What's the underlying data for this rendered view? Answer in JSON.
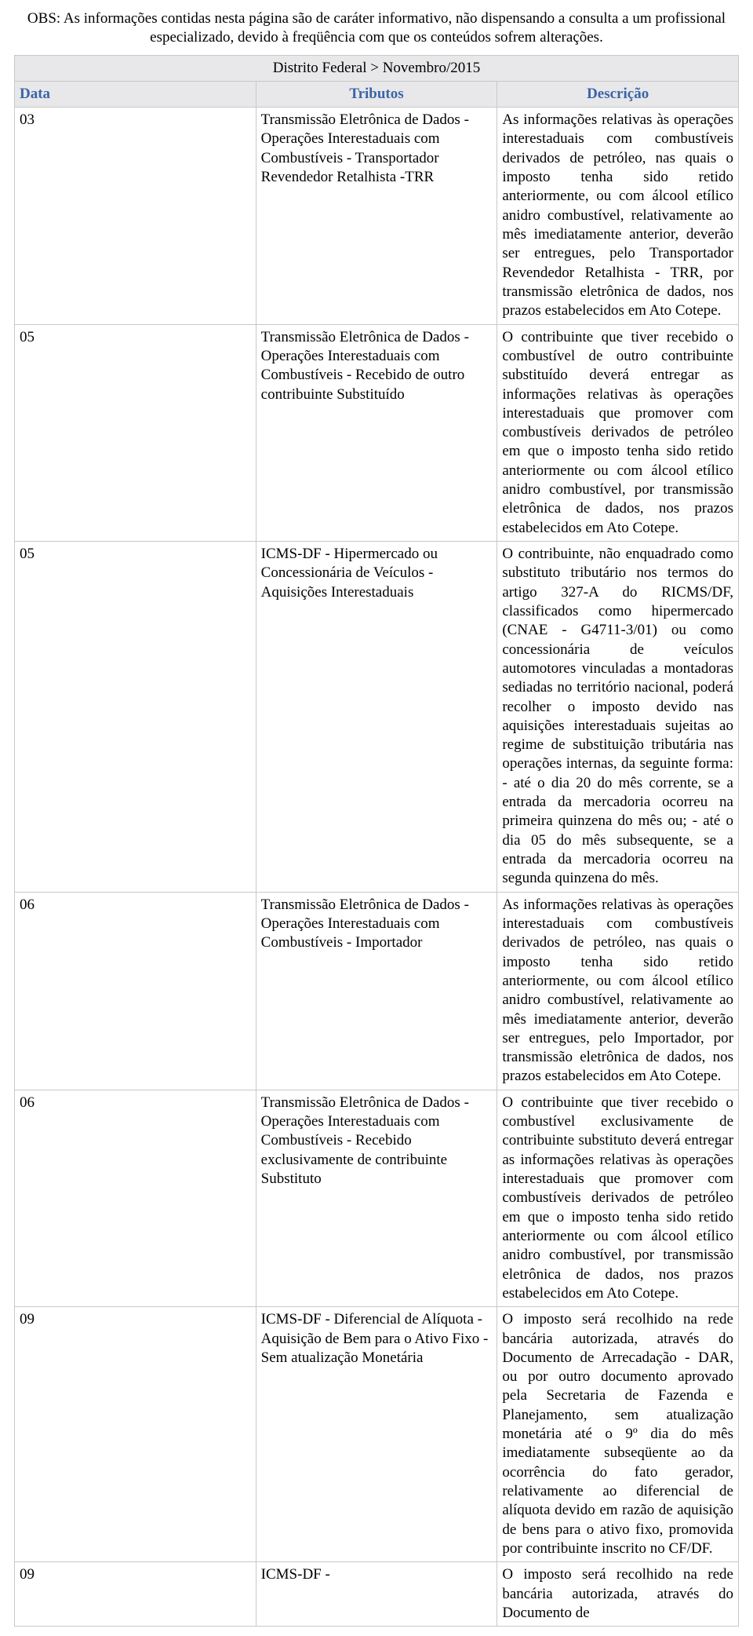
{
  "obs": "OBS: As informações contidas nesta página são de caráter informativo, não dispensando a consulta a um profissional especializado, devido à freqüência com que os conteúdos sofrem alterações.",
  "region": "Distrito Federal > Novembro/2015",
  "headers": {
    "data": "Data",
    "tributos": "Tributos",
    "descricao": "Descrição"
  },
  "rows": [
    {
      "data": "03",
      "tributo": "Transmissão Eletrônica de Dados - Operações Interestaduais com Combustíveis - Transportador Revendedor Retalhista -TRR",
      "descricao": "As informações relativas às operações interestaduais com combustíveis derivados de petróleo, nas quais o imposto tenha sido retido anteriormente, ou com álcool etílico anidro combustível, relativamente ao mês imediatamente anterior, deverão ser entregues, pelo Transportador Revendedor Retalhista - TRR, por transmissão eletrônica de dados, nos prazos estabelecidos em Ato Cotepe."
    },
    {
      "data": "05",
      "tributo": "Transmissão Eletrônica de Dados - Operações Interestaduais com Combustíveis - Recebido de outro contribuinte Substituído",
      "descricao": "O contribuinte que tiver recebido o combustível de outro contribuinte substituído deverá entregar as informações relativas às operações interestaduais que promover com combustíveis derivados de petróleo em que o imposto tenha sido retido anteriormente ou com álcool etílico anidro combustível, por transmissão eletrônica de dados, nos prazos estabelecidos em Ato Cotepe."
    },
    {
      "data": "05",
      "tributo": "ICMS-DF - Hipermercado ou Concessionária de Veículos - Aquisições Interestaduais",
      "descricao": "O contribuinte, não enquadrado como substituto tributário nos termos do artigo 327-A do RICMS/DF, classificados como hipermercado (CNAE - G4711-3/01) ou como concessionária de veículos automotores vinculadas a montadoras sediadas no território nacional, poderá recolher o imposto devido nas aquisições interestaduais sujeitas ao regime de substituição tributária nas operações internas, da seguinte forma: - até o dia 20 do mês corrente, se a entrada da mercadoria ocorreu na primeira quinzena do mês ou; - até o dia 05 do mês subsequente, se a entrada da mercadoria ocorreu na segunda quinzena do mês."
    },
    {
      "data": "06",
      "tributo": "Transmissão Eletrônica de Dados - Operações Interestaduais com Combustíveis - Importador",
      "descricao": "As informações relativas às operações interestaduais com combustíveis derivados de petróleo, nas quais o imposto tenha sido retido anteriormente, ou com álcool etílico anidro combustível, relativamente ao mês imediatamente anterior, deverão ser entregues, pelo Importador, por transmissão eletrônica de dados, nos prazos estabelecidos em Ato Cotepe."
    },
    {
      "data": "06",
      "tributo": "Transmissão Eletrônica de Dados - Operações Interestaduais com Combustíveis - Recebido exclusivamente de contribuinte Substituto",
      "descricao": "O contribuinte que tiver recebido o combustível exclusivamente de contribuinte substituto deverá entregar as informações relativas às operações interestaduais que promover com combustíveis derivados de petróleo em que o imposto tenha sido retido anteriormente ou com álcool etílico anidro combustível, por transmissão eletrônica de dados, nos prazos estabelecidos em Ato Cotepe."
    },
    {
      "data": "09",
      "tributo": "ICMS-DF - Diferencial de Alíquota - Aquisição de Bem para o Ativo Fixo - Sem atualização Monetária",
      "descricao": "O imposto será recolhido na rede bancária autorizada, através do Documento de Arrecadação - DAR, ou por outro documento aprovado pela Secretaria de Fazenda e Planejamento, sem atualização monetária até o 9º dia do mês imediatamente subseqüente ao da ocorrência do fato gerador, relativamente ao diferencial de alíquota devido em razão de aquisição de bens para o ativo fixo, promovida por contribuinte inscrito no CF/DF."
    },
    {
      "data": "09",
      "tributo": "ICMS-DF -",
      "descricao": "O imposto será recolhido na rede bancária autorizada, através do Documento de"
    }
  ],
  "colors": {
    "header_bg": "#e8e8ea",
    "header_text": "#3c64a8",
    "border": "#c8c8c8",
    "body_text": "#000000",
    "background": "#ffffff"
  }
}
